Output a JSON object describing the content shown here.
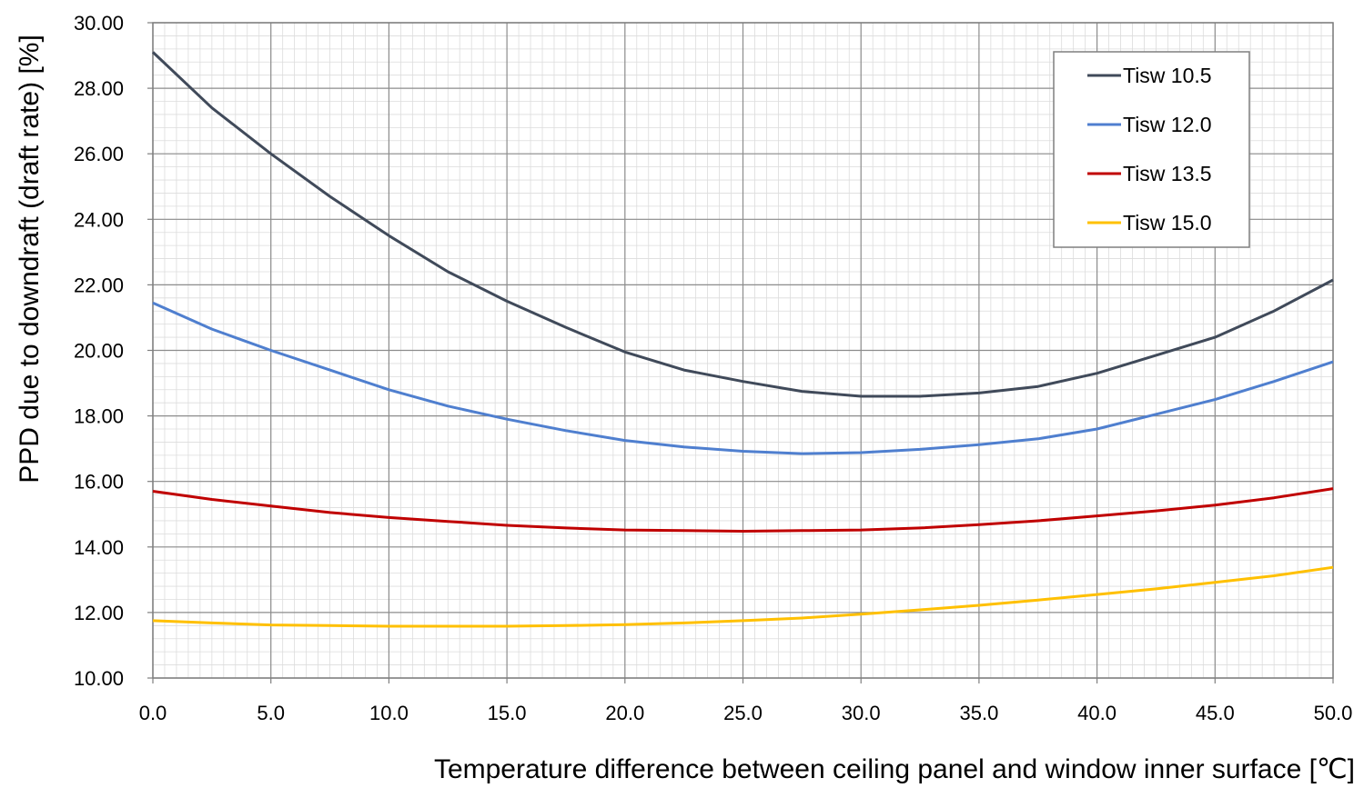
{
  "chart_data": {
    "type": "line",
    "xlabel": "Temperature difference between ceiling panel and window inner surface [℃]",
    "ylabel": "PPD due to downdraft (draft rate) [%]",
    "xlim": [
      0,
      50
    ],
    "ylim": [
      10,
      30
    ],
    "x_ticks": [
      "0.0",
      "5.0",
      "10.0",
      "15.0",
      "20.0",
      "25.0",
      "30.0",
      "35.0",
      "40.0",
      "45.0",
      "50.0"
    ],
    "y_ticks": [
      "10.00",
      "12.00",
      "14.00",
      "16.00",
      "18.00",
      "20.00",
      "22.00",
      "24.00",
      "26.00",
      "28.00",
      "30.00"
    ],
    "grid": true,
    "legend_position": "top-right",
    "x": [
      0,
      2.5,
      5,
      7.5,
      10,
      12.5,
      15,
      17.5,
      20,
      22.5,
      25,
      27.5,
      30,
      32.5,
      35,
      37.5,
      40,
      42.5,
      45,
      47.5,
      50
    ],
    "series": [
      {
        "name": "Tisw 10.5",
        "color": "#404a5a",
        "values": [
          29.1,
          27.4,
          26.0,
          24.7,
          23.5,
          22.4,
          21.5,
          20.7,
          19.95,
          19.4,
          19.05,
          18.75,
          18.6,
          18.6,
          18.7,
          18.9,
          19.3,
          19.85,
          20.4,
          21.2,
          22.15
        ]
      },
      {
        "name": "Tisw 12.0",
        "color": "#4f7fcf",
        "values": [
          21.45,
          20.65,
          20.0,
          19.4,
          18.8,
          18.3,
          17.9,
          17.55,
          17.25,
          17.05,
          16.92,
          16.85,
          16.88,
          16.98,
          17.12,
          17.3,
          17.6,
          18.05,
          18.5,
          19.05,
          19.65
        ]
      },
      {
        "name": "Tisw 13.5",
        "color": "#c00000",
        "values": [
          15.7,
          15.45,
          15.25,
          15.05,
          14.9,
          14.78,
          14.66,
          14.58,
          14.52,
          14.5,
          14.48,
          14.5,
          14.52,
          14.58,
          14.68,
          14.8,
          14.95,
          15.1,
          15.28,
          15.5,
          15.78
        ]
      },
      {
        "name": "Tisw 15.0",
        "color": "#ffc000",
        "values": [
          11.75,
          11.68,
          11.62,
          11.6,
          11.58,
          11.58,
          11.58,
          11.6,
          11.63,
          11.68,
          11.75,
          11.83,
          11.95,
          12.08,
          12.22,
          12.38,
          12.55,
          12.72,
          12.92,
          13.12,
          13.38
        ]
      }
    ]
  }
}
